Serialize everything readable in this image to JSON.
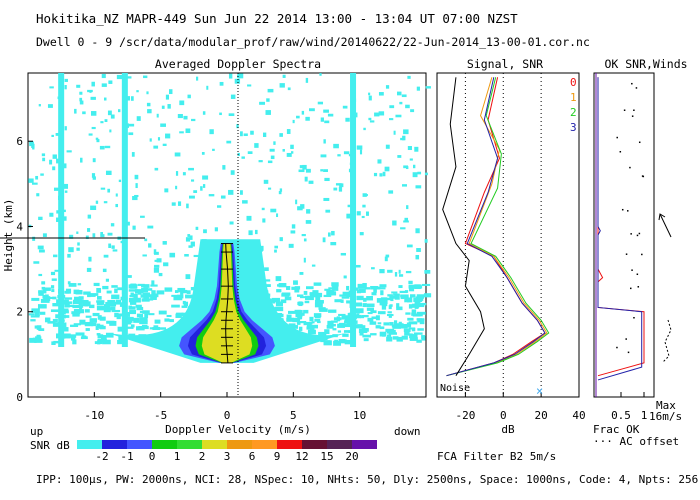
{
  "header": {
    "title": "Hokitika_NZ  MAPR-449  Sun Jun 22 2014 13:00 - 13:04 UT 07:00 NZST",
    "subtitle": "Dwell  0 - 9   /scr/data/modular_prof/raw/wind/20140622/22-Jun-2014_13-00-01.cor.nc"
  },
  "footer": {
    "params": "IPP: 100μs,  PW: 2000ns,  NCI: 28,  NSpec: 10, NHts: 50,  Dly: 2500ns,  Space: 1000ns,  Code: 4,  Npts: 256",
    "fca": "FCA Filter B2  5m/s",
    "up": "up",
    "down": "down",
    "snr_db": "SNR dB"
  },
  "colors": {
    "scale": [
      "#44eeee",
      "#2222dd",
      "#4455ff",
      "#11cc11",
      "#33dd33",
      "#dddd22",
      "#ee9911",
      "#ff9922",
      "#ee1111",
      "#661133",
      "#552255",
      "#6611aa"
    ],
    "beams": [
      "#ee1111",
      "#ee9911",
      "#22cc22",
      "#2222aa"
    ],
    "spectra": "#44eeee"
  },
  "chart_data": [
    {
      "type": "heatmap",
      "title": "Averaged Doppler Spectra",
      "xlabel": "Doppler Velocity (m/s)",
      "ylabel": "Height (km)",
      "xlim": [
        -15,
        15
      ],
      "ylim": [
        0,
        7.6
      ],
      "x_ticks": [
        "-10",
        "-5",
        "0",
        "5",
        "10"
      ],
      "y_ticks": [
        "0",
        "2",
        "4",
        "6"
      ],
      "vertical_bands_mps": [
        -12.5,
        -7.7,
        9.5
      ],
      "core": [
        {
          "h": 0.8,
          "w": 0.3
        },
        {
          "h": 1.0,
          "w": 1.7
        },
        {
          "h": 1.2,
          "w": 1.9
        },
        {
          "h": 1.4,
          "w": 1.8
        },
        {
          "h": 1.6,
          "w": 1.4
        },
        {
          "h": 1.8,
          "w": 1.0
        },
        {
          "h": 2.0,
          "w": 0.7
        },
        {
          "h": 2.3,
          "w": 0.5
        },
        {
          "h": 2.6,
          "w": 0.4
        },
        {
          "h": 3.0,
          "w": 0.35
        },
        {
          "h": 3.4,
          "w": 0.3
        },
        {
          "h": 3.6,
          "w": 0.25
        }
      ],
      "colorbar": {
        "label": "SNR dB",
        "ticks": [
          "-2",
          "-1",
          "0",
          "1",
          "2",
          "3",
          "6",
          "9",
          "12",
          "15",
          "20"
        ]
      }
    },
    {
      "type": "line",
      "title": "Signal, SNR",
      "xlabel": "dB",
      "x_ticks": [
        "-20",
        "0",
        "20",
        "40"
      ],
      "xlim": [
        -35,
        40
      ],
      "noise_label": "Noise",
      "series": [
        {
          "name": "0",
          "color": "#ee1111",
          "points": [
            [
              -30,
              0.5
            ],
            [
              -5,
              0.8
            ],
            [
              5,
              1.0
            ],
            [
              15,
              1.3
            ],
            [
              22,
              1.5
            ],
            [
              18,
              1.8
            ],
            [
              10,
              2.2
            ],
            [
              2,
              2.8
            ],
            [
              -5,
              3.3
            ],
            [
              -20,
              3.6
            ],
            [
              -10,
              4.8
            ],
            [
              -2,
              5.6
            ],
            [
              -8,
              6.5
            ],
            [
              -3,
              7.5
            ]
          ]
        },
        {
          "name": "1",
          "color": "#ee9911",
          "points": [
            [
              -30,
              0.5
            ],
            [
              -4,
              0.8
            ],
            [
              7,
              1.0
            ],
            [
              17,
              1.3
            ],
            [
              23,
              1.5
            ],
            [
              19,
              1.8
            ],
            [
              11,
              2.2
            ],
            [
              3,
              2.8
            ],
            [
              -5,
              3.3
            ],
            [
              -18,
              3.6
            ],
            [
              -6,
              5.0
            ],
            [
              -2,
              5.8
            ],
            [
              -12,
              6.6
            ],
            [
              -6,
              7.5
            ]
          ]
        },
        {
          "name": "2",
          "color": "#22cc22",
          "points": [
            [
              -30,
              0.5
            ],
            [
              -3,
              0.8
            ],
            [
              8,
              1.0
            ],
            [
              18,
              1.3
            ],
            [
              24,
              1.5
            ],
            [
              20,
              1.8
            ],
            [
              12,
              2.2
            ],
            [
              4,
              2.8
            ],
            [
              -4,
              3.3
            ],
            [
              -17,
              3.6
            ],
            [
              -3,
              4.9
            ],
            [
              -1,
              5.7
            ],
            [
              -9,
              6.6
            ],
            [
              -4,
              7.5
            ]
          ]
        },
        {
          "name": "3",
          "color": "#2222aa",
          "points": [
            [
              -30,
              0.5
            ],
            [
              -5,
              0.8
            ],
            [
              6,
              1.0
            ],
            [
              16,
              1.3
            ],
            [
              22,
              1.5
            ],
            [
              18,
              1.8
            ],
            [
              10,
              2.2
            ],
            [
              2,
              2.8
            ],
            [
              -6,
              3.3
            ],
            [
              -19,
              3.6
            ],
            [
              -8,
              4.8
            ],
            [
              -3,
              5.6
            ],
            [
              -10,
              6.5
            ],
            [
              -5,
              7.5
            ]
          ]
        },
        {
          "name": "noise",
          "color": "#000000",
          "points": [
            [
              -25,
              0.5
            ],
            [
              -18,
              1.0
            ],
            [
              -10,
              1.6
            ],
            [
              -12,
              2.0
            ],
            [
              -20,
              2.6
            ],
            [
              -18,
              3.2
            ],
            [
              -25,
              3.6
            ],
            [
              -32,
              4.4
            ],
            [
              -25,
              5.4
            ],
            [
              -28,
              6.4
            ],
            [
              -25,
              7.5
            ]
          ]
        }
      ]
    },
    {
      "type": "line",
      "title": "OK SNR,Winds",
      "xlabel": "Frac OK",
      "x_ticks": [
        "0.5",
        "1"
      ],
      "xlim": [
        0,
        1
      ],
      "legend": [
        "0",
        "1",
        "2",
        "3"
      ],
      "annotations": {
        "ac_offset": "··· AC offset",
        "max": "Max",
        "max_speed": "16m/s"
      },
      "series": [
        {
          "name": "0",
          "color": "#ee1111",
          "points": [
            [
              0,
              0.5
            ],
            [
              1,
              0.8
            ],
            [
              1,
              2.0
            ],
            [
              0,
              2.1
            ],
            [
              0,
              2.7
            ],
            [
              0.1,
              2.8
            ],
            [
              0,
              3.0
            ],
            [
              0,
              7.5
            ]
          ]
        },
        {
          "name": "3",
          "color": "#2222aa",
          "points": [
            [
              0,
              0.4
            ],
            [
              0.95,
              0.7
            ],
            [
              0.95,
              2.0
            ],
            [
              0,
              2.1
            ],
            [
              0,
              3.8
            ],
            [
              0.05,
              3.9
            ],
            [
              0,
              4.0
            ],
            [
              0,
              7.5
            ]
          ]
        }
      ]
    }
  ]
}
